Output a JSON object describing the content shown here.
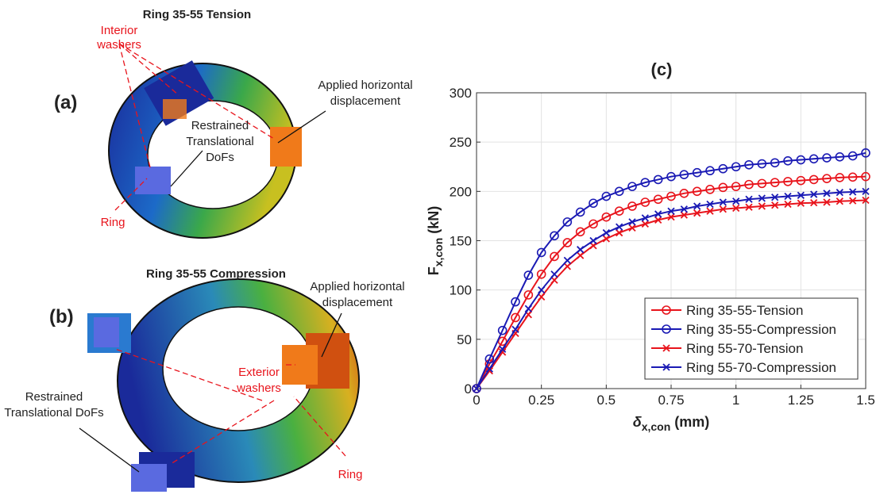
{
  "panel_a": {
    "title": "Ring 35-55 Tension",
    "label": "(a)",
    "interior_washers": [
      "Interior",
      "washers"
    ],
    "applied": [
      "Applied horizontal",
      "displacement"
    ],
    "restrained": [
      "Restrained",
      "Translational",
      "DoFs"
    ],
    "ring": "Ring"
  },
  "panel_b": {
    "title": "Ring 35-55 Compression",
    "label": "(b)",
    "applied": [
      "Applied horizontal",
      "displacement"
    ],
    "exterior_washers": [
      "Exterior",
      "washers"
    ],
    "restrained": [
      "Restrained",
      "Translational DoFs"
    ],
    "ring": "Ring"
  },
  "chart_data": {
    "type": "line",
    "title": "(c)",
    "xlabel": {
      "symbol": "δ",
      "sub": "x,con",
      "unit": "(mm)"
    },
    "ylabel": {
      "symbol": "F",
      "sub": "x,con",
      "unit": "(kN)"
    },
    "x": [
      0,
      0.05,
      0.1,
      0.15,
      0.2,
      0.25,
      0.3,
      0.35,
      0.4,
      0.45,
      0.5,
      0.55,
      0.6,
      0.65,
      0.7,
      0.75,
      0.8,
      0.85,
      0.9,
      0.95,
      1.0,
      1.05,
      1.1,
      1.15,
      1.2,
      1.25,
      1.3,
      1.35,
      1.4,
      1.45,
      1.5
    ],
    "series": [
      {
        "name": "Ring 35-55-Tension",
        "color": "#e8141c",
        "marker": "circle",
        "values": [
          0,
          25,
          48,
          72,
          95,
          116,
          134,
          148,
          159,
          167,
          174,
          180,
          185,
          189,
          192,
          195,
          198,
          200,
          202,
          204,
          205,
          207,
          208,
          209,
          210,
          211,
          212,
          213,
          214,
          214.5,
          215
        ]
      },
      {
        "name": "Ring 35-55-Compression",
        "color": "#1a1ab4",
        "marker": "circle",
        "values": [
          0,
          30,
          59,
          88,
          115,
          138,
          155,
          169,
          179,
          188,
          195,
          200,
          205,
          209,
          212,
          215,
          217,
          219,
          221,
          223,
          225,
          227,
          228,
          229,
          231,
          232,
          233,
          234,
          235,
          236,
          239
        ]
      },
      {
        "name": "Ring 55-70-Tension",
        "color": "#e8141c",
        "marker": "x",
        "values": [
          0,
          18,
          37,
          56,
          75,
          93,
          110,
          124,
          135,
          145,
          152,
          158,
          163,
          167,
          171,
          174,
          176,
          178,
          180,
          182,
          183,
          184,
          185,
          186,
          187,
          188,
          188.5,
          189,
          190,
          190.5,
          191
        ]
      },
      {
        "name": "Ring 55-70-Compression",
        "color": "#1a1ab4",
        "marker": "x",
        "values": [
          0,
          20,
          40,
          60,
          81,
          100,
          116,
          130,
          141,
          150,
          158,
          164,
          169,
          173,
          177,
          180,
          182,
          185,
          187,
          189,
          190,
          192,
          193,
          194,
          195,
          196,
          197,
          198,
          199,
          199.5,
          200
        ]
      }
    ],
    "xlim": [
      0,
      1.5
    ],
    "ylim": [
      0,
      300
    ],
    "xticks": [
      0,
      0.25,
      0.5,
      0.75,
      1,
      1.25,
      1.5
    ],
    "yticks": [
      0,
      50,
      100,
      150,
      200,
      250,
      300
    ],
    "grid": true,
    "legend": "lower right"
  }
}
